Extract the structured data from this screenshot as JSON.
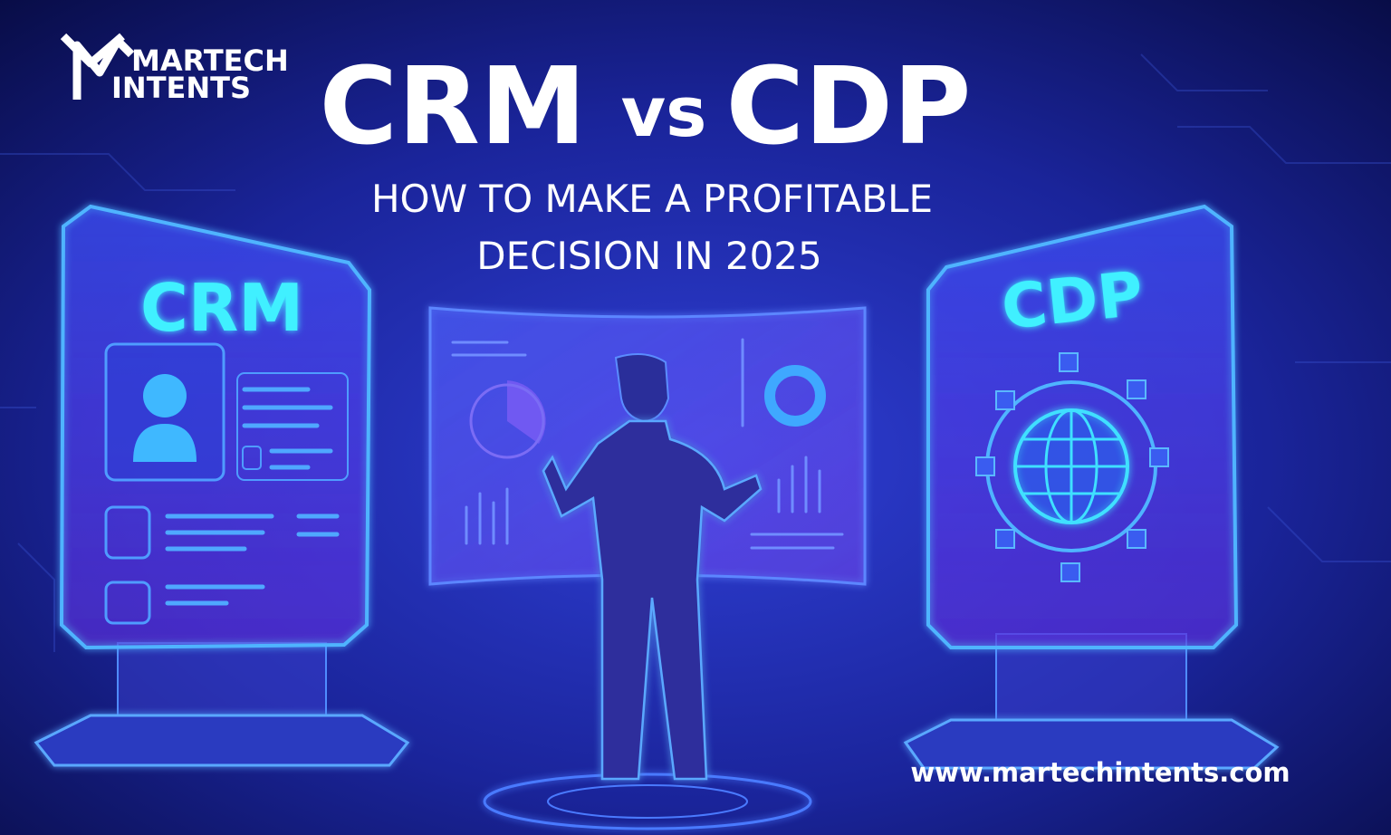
{
  "logo": {
    "line1": "MARTECH",
    "line2": "INTENTS"
  },
  "header": {
    "title_left": "CRM",
    "title_mid": "vs",
    "title_right": "CDP",
    "subtitle_line1": "HOW TO MAKE A PROFITABLE",
    "subtitle_line2": "DECISION IN 2025"
  },
  "panels": {
    "left_label": "CRM",
    "right_label": "CDP"
  },
  "footer": {
    "url": "www.martechintents.com"
  }
}
